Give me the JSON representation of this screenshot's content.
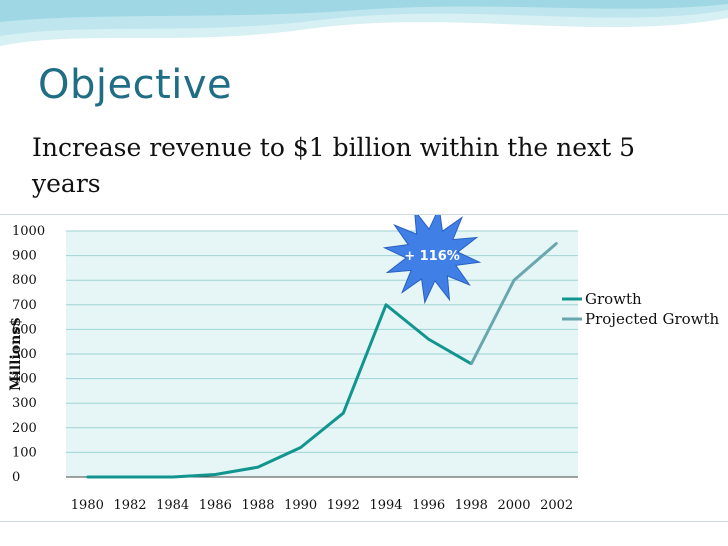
{
  "slide": {
    "title": "Objective",
    "subtitle": "Increase revenue to $1 billion within the next 5 years"
  },
  "colors": {
    "title": "#1f6e86",
    "plot_bg": "#e6f6f7",
    "growth": "#12958f",
    "projected": "#6aa7ad",
    "badge": "#3f7fe6",
    "wave": "#bfe6ee"
  },
  "callout": {
    "text": "+ 116%"
  },
  "chart_data": {
    "type": "line",
    "title": "",
    "xlabel": "",
    "ylabel": "Millions$",
    "categories": [
      "1980",
      "1982",
      "1984",
      "1986",
      "1988",
      "1990",
      "1992",
      "1994",
      "1996",
      "1998",
      "2000",
      "2002"
    ],
    "series": [
      {
        "name": "Growth",
        "values": [
          0,
          0,
          0,
          10,
          40,
          120,
          260,
          700,
          560,
          460,
          null,
          null
        ]
      },
      {
        "name": "Projected Growth",
        "values": [
          null,
          null,
          null,
          null,
          null,
          null,
          null,
          null,
          null,
          460,
          800,
          950
        ]
      }
    ],
    "ylim": [
      0,
      1000
    ],
    "yticks": [
      0,
      100,
      200,
      300,
      400,
      500,
      600,
      700,
      800,
      900,
      1000
    ],
    "grid": true,
    "legend": "right"
  }
}
